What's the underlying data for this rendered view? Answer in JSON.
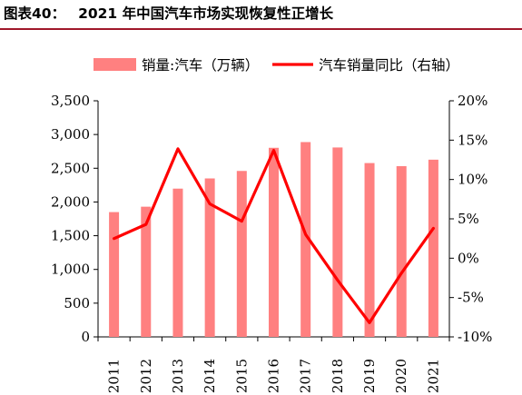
{
  "title": {
    "label": "图表40：",
    "text": "2021 年中国汽车市场实现恢复性正增长"
  },
  "chart_data": {
    "type": "bar",
    "categories": [
      "2011",
      "2012",
      "2013",
      "2014",
      "2015",
      "2016",
      "2017",
      "2018",
      "2019",
      "2020",
      "2021"
    ],
    "series": [
      {
        "name": "销量:汽车（万辆）",
        "type": "bar",
        "axis": "left",
        "color": "#ff8080",
        "values": [
          1850,
          1930,
          2198,
          2349,
          2460,
          2803,
          2888,
          2808,
          2577,
          2531,
          2627
        ]
      },
      {
        "name": "汽车销量同比（右轴）",
        "type": "line",
        "axis": "right",
        "color": "#ff0000",
        "values": [
          2.5,
          4.3,
          13.9,
          6.9,
          4.7,
          13.7,
          3.0,
          -2.8,
          -8.2,
          -1.9,
          3.8
        ]
      }
    ],
    "y_left": {
      "min": 0,
      "max": 3500,
      "ticks": [
        0,
        500,
        1000,
        1500,
        2000,
        2500,
        3000,
        3500
      ],
      "tick_labels": [
        "0",
        "500",
        "1,000",
        "1,500",
        "2,000",
        "2,500",
        "3,000",
        "3,500"
      ]
    },
    "y_right": {
      "min": -10,
      "max": 20,
      "ticks": [
        -10,
        -5,
        0,
        5,
        10,
        15,
        20
      ],
      "tick_labels": [
        "-10%",
        "-5%",
        "0%",
        "5%",
        "10%",
        "15%",
        "20%"
      ]
    },
    "grid": false,
    "legend_position": "top"
  }
}
